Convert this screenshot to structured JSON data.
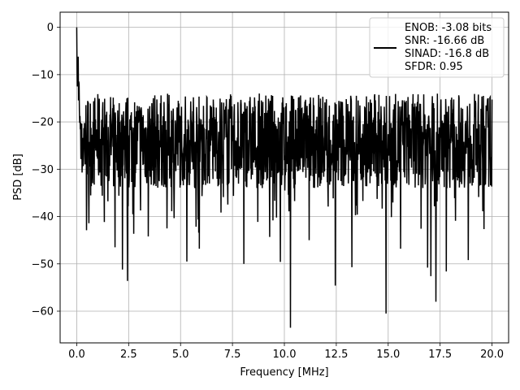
{
  "chart_data": {
    "type": "line",
    "xlabel": "Frequency [MHz]",
    "ylabel": "PSD [dB]",
    "xlim": [
      -0.8,
      20.8
    ],
    "ylim": [
      -66.7,
      3.2
    ],
    "xticks": [
      0.0,
      2.5,
      5.0,
      7.5,
      10.0,
      12.5,
      15.0,
      17.5,
      20.0
    ],
    "xtick_labels": [
      "0.0",
      "2.5",
      "5.0",
      "7.5",
      "10.0",
      "12.5",
      "15.0",
      "17.5",
      "20.0"
    ],
    "yticks": [
      0,
      -10,
      -20,
      -30,
      -40,
      -50,
      -60
    ],
    "ytick_labels": [
      "0",
      "−10",
      "−20",
      "−30",
      "−40",
      "−50",
      "−60"
    ],
    "grid": true,
    "legend_position": "top-right",
    "legend_entries": [
      "ENOB: -3.08 bits",
      "SNR: -16.66 dB",
      "SINAD: -16.8 dB",
      "SFDR: 0.95"
    ],
    "line_color": "#000000",
    "series": [
      {
        "x_range": [
          0.0,
          20.0
        ],
        "num_points": 1400,
        "seed": 7,
        "floor_mean_db": -24.0,
        "floor_spread_db": 10.0,
        "dc_peak_db": 0.0,
        "dips": [
          {
            "x": 1.85,
            "y": -46.5
          },
          {
            "x": 2.2,
            "y": -51.2
          },
          {
            "x": 2.45,
            "y": -53.6
          },
          {
            "x": 3.45,
            "y": -44.2
          },
          {
            "x": 4.35,
            "y": -42.5
          },
          {
            "x": 5.3,
            "y": -49.5
          },
          {
            "x": 5.9,
            "y": -46.8
          },
          {
            "x": 8.05,
            "y": -50.0
          },
          {
            "x": 9.8,
            "y": -49.6
          },
          {
            "x": 10.3,
            "y": -63.5
          },
          {
            "x": 11.2,
            "y": -45.0
          },
          {
            "x": 12.45,
            "y": -54.6
          },
          {
            "x": 13.25,
            "y": -50.7
          },
          {
            "x": 14.9,
            "y": -60.5
          },
          {
            "x": 15.6,
            "y": -46.8
          },
          {
            "x": 16.9,
            "y": -50.8
          },
          {
            "x": 17.05,
            "y": -52.6
          },
          {
            "x": 17.3,
            "y": -58.0
          },
          {
            "x": 17.8,
            "y": -51.6
          },
          {
            "x": 18.85,
            "y": -49.2
          }
        ]
      }
    ]
  }
}
